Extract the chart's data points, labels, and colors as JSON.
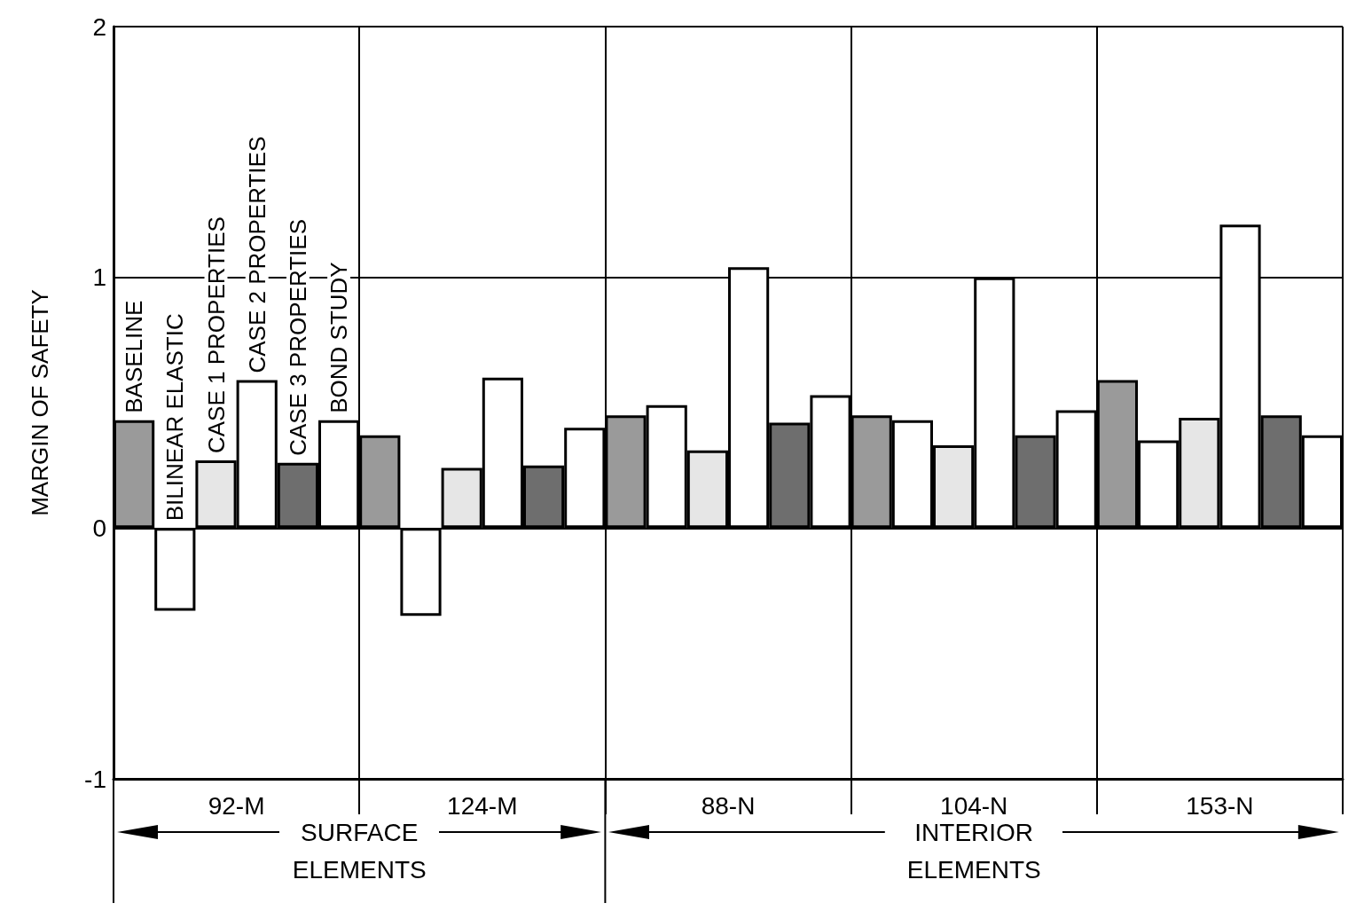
{
  "chart_data": {
    "type": "bar",
    "ylabel": "MARGIN OF SAFETY",
    "categories": [
      "92-M",
      "124-M",
      "88-N",
      "104-N",
      "153-N"
    ],
    "series": [
      {
        "name": "BASELINE",
        "color": "#9a9a9a",
        "values": [
          0.43,
          0.37,
          0.45,
          0.45,
          0.59
        ]
      },
      {
        "name": "BILINEAR ELASTIC",
        "color": "#ffffff",
        "values": [
          -0.33,
          -0.35,
          0.49,
          0.43,
          0.35
        ]
      },
      {
        "name": "CASE 1 PROPERTIES",
        "color": "#e6e6e6",
        "values": [
          0.27,
          0.24,
          0.31,
          0.33,
          0.44
        ]
      },
      {
        "name": "CASE 2 PROPERTIES",
        "color": "#ffffff",
        "values": [
          0.59,
          0.6,
          1.04,
          1.0,
          1.21
        ]
      },
      {
        "name": "CASE 3 PROPERTIES",
        "color": "#6e6e6e",
        "values": [
          0.26,
          0.25,
          0.42,
          0.37,
          0.45
        ]
      },
      {
        "name": "BOND STUDY",
        "color": "#ffffff",
        "values": [
          0.43,
          0.4,
          0.53,
          0.47,
          0.37
        ]
      }
    ],
    "ylim": [
      -1,
      2
    ],
    "yticks": [
      -1,
      0,
      1,
      2
    ],
    "grid": true,
    "legend": false,
    "annotations": [
      "SURFACE ELEMENTS",
      "INTERIOR ELEMENTS"
    ]
  }
}
